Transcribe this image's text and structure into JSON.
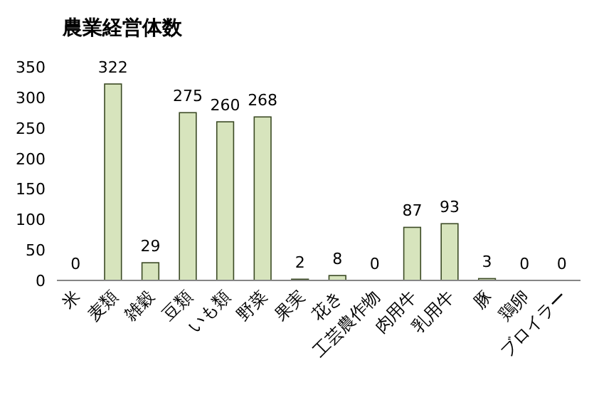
{
  "chart_data": {
    "type": "bar",
    "title": "農業経営体数",
    "categories": [
      "米",
      "麦類",
      "雑穀",
      "豆類",
      "いも類",
      "野菜",
      "果実",
      "花き",
      "工芸農作物",
      "肉用牛",
      "乳用牛",
      "豚",
      "鶏卵",
      "ブロイラー"
    ],
    "values": [
      0,
      322,
      29,
      275,
      260,
      268,
      2,
      8,
      0,
      87,
      93,
      3,
      0,
      0
    ],
    "color": "#d7e4bd",
    "ylim": [
      0,
      350
    ],
    "yticks": [
      0,
      50,
      100,
      150,
      200,
      250,
      300,
      350
    ],
    "data_labels": true
  }
}
